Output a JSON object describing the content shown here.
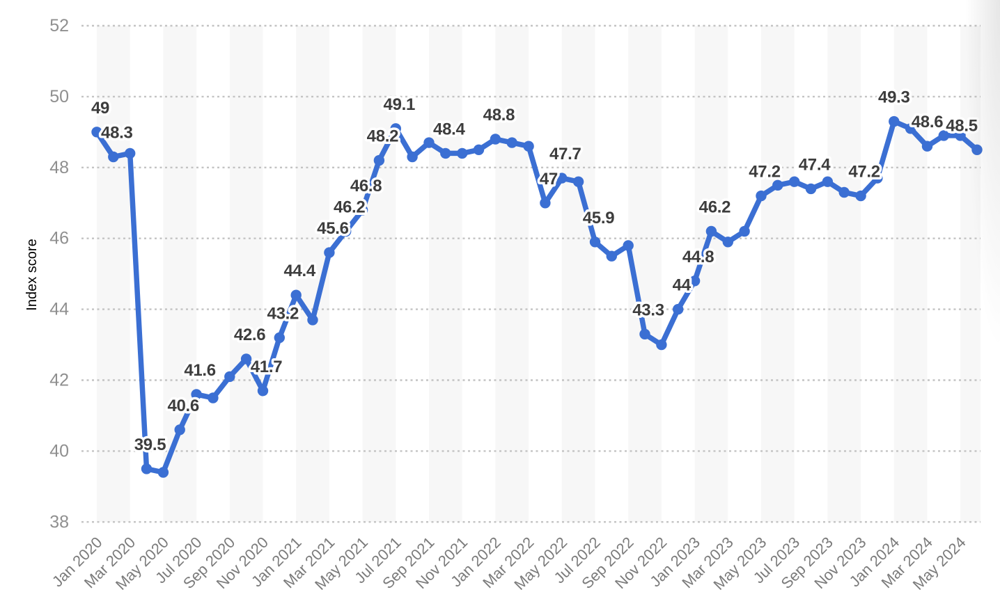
{
  "chart_data": {
    "type": "line",
    "title": "",
    "xlabel": "",
    "ylabel": "Index score",
    "ylim": [
      38,
      52
    ],
    "y_ticks": [
      52,
      50,
      48,
      46,
      44,
      42,
      40,
      38
    ],
    "grid": "horizontal-dotted",
    "background_bands": "alternating vertical 2-month stripes",
    "legend": null,
    "x_tick_labels": [
      "Jan 2020",
      "Mar 2020",
      "May 2020",
      "Jul 2020",
      "Sep 2020",
      "Nov 2020",
      "Jan 2021",
      "Mar 2021",
      "May 2021",
      "Jul 2021",
      "Sep 2021",
      "Nov 2021",
      "Jan 2022",
      "Mar 2022",
      "May 2022",
      "Jul 2022",
      "Sep 2022",
      "Nov 2022",
      "Jan 2023",
      "Mar 2023",
      "May 2023",
      "Jul 2023",
      "Sep 2023",
      "Nov 2023",
      "Jan 2024",
      "Mar 2024",
      "May 2024"
    ],
    "categories": [
      "Jan 2020",
      "Feb 2020",
      "Mar 2020",
      "Apr 2020",
      "May 2020",
      "Jun 2020",
      "Jul 2020",
      "Aug 2020",
      "Sep 2020",
      "Oct 2020",
      "Nov 2020",
      "Dec 2020",
      "Jan 2021",
      "Feb 2021",
      "Mar 2021",
      "Apr 2021",
      "May 2021",
      "Jun 2021",
      "Jul 2021",
      "Aug 2021",
      "Sep 2021",
      "Oct 2021",
      "Nov 2021",
      "Dec 2021",
      "Jan 2022",
      "Feb 2022",
      "Mar 2022",
      "Apr 2022",
      "May 2022",
      "Jun 2022",
      "Jul 2022",
      "Aug 2022",
      "Sep 2022",
      "Oct 2022",
      "Nov 2022",
      "Dec 2022",
      "Jan 2023",
      "Feb 2023",
      "Mar 2023",
      "Apr 2023",
      "May 2023",
      "Jun 2023",
      "Jul 2023",
      "Aug 2023",
      "Sep 2023",
      "Oct 2023",
      "Nov 2023",
      "Dec 2023",
      "Jan 2024",
      "Feb 2024",
      "Mar 2024",
      "Apr 2024",
      "May 2024",
      "Jun 2024"
    ],
    "series": [
      {
        "name": "Index score",
        "values": [
          49,
          48.3,
          48.4,
          39.5,
          39.4,
          40.6,
          41.6,
          41.5,
          42.1,
          42.6,
          41.7,
          43.2,
          44.4,
          43.7,
          45.6,
          46.2,
          46.8,
          48.2,
          49.1,
          48.3,
          48.7,
          48.4,
          48.4,
          48.5,
          48.8,
          48.7,
          48.6,
          47,
          47.7,
          47.6,
          45.9,
          45.5,
          45.8,
          43.3,
          43,
          44,
          44.8,
          46.2,
          45.9,
          46.2,
          47.2,
          47.5,
          47.6,
          47.4,
          47.6,
          47.3,
          47.2,
          47.7,
          49.3,
          49.1,
          48.6,
          48.9,
          48.9,
          48.5
        ]
      }
    ],
    "point_labels": {
      "0": "49",
      "1": "48.3",
      "3": "39.5",
      "5": "40.6",
      "6": "41.6",
      "9": "42.6",
      "10": "41.7",
      "11": "43.2",
      "12": "44.4",
      "14": "45.6",
      "15": "46.2",
      "16": "46.8",
      "17": "48.2",
      "18": "49.1",
      "21": "48.4",
      "24": "48.8",
      "27": "47",
      "28": "47.7",
      "30": "45.9",
      "33": "43.3",
      "35": "44",
      "36": "44.8",
      "37": "46.2",
      "40": "47.2",
      "43": "47.4",
      "46": "47.2",
      "48": "49.3",
      "50": "48.6",
      "53": "48.5"
    },
    "colors": {
      "line": "#3b6fd3",
      "point_label": "#3d3d3d",
      "band": "#f7f7f7",
      "grid": "#c3c3c3",
      "y_tick": "#8f8f8f",
      "x_tick": "#7b7b7b",
      "axis_title": "#6f6f6f",
      "background": "#ffffff"
    }
  }
}
